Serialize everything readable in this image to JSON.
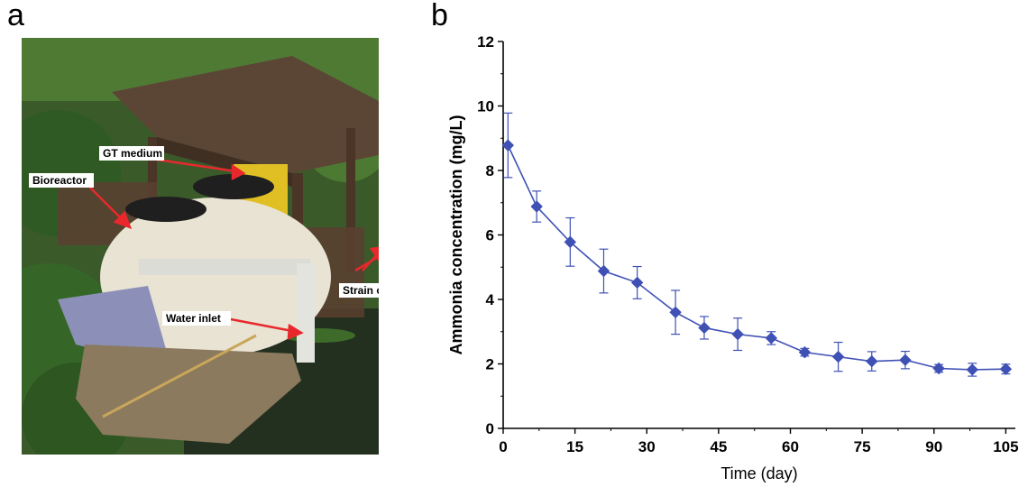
{
  "panels": {
    "a": "a",
    "b": "b"
  },
  "photo": {
    "annotations": [
      {
        "id": "gt-medium",
        "label": "GT medium"
      },
      {
        "id": "bioreactor",
        "label": "Bioreactor"
      },
      {
        "id": "strain-outfall",
        "label": "Strain outfall"
      },
      {
        "id": "water-inlet",
        "label": "Water inlet"
      }
    ],
    "colors": {
      "arrow": "#e8282c",
      "foliage": "#3f6b2c",
      "water": "#2b3a2a",
      "roof": "#5b4636",
      "tank": "#e9e3d3"
    }
  },
  "chart_data": {
    "type": "line",
    "xlabel": "Time (day)",
    "ylabel": "Ammonia concentration (mg/L)",
    "xlim": [
      0,
      107
    ],
    "ylim": [
      0,
      12
    ],
    "xticks": [
      0,
      15,
      30,
      45,
      60,
      75,
      90,
      105
    ],
    "yticks": [
      0,
      2,
      4,
      6,
      8,
      10,
      12
    ],
    "grid": false,
    "marker": "diamond",
    "color": "#3f51b5",
    "series": [
      {
        "x": [
          1,
          7,
          14,
          21,
          28,
          36,
          42,
          49,
          56,
          63,
          70,
          77,
          84,
          91,
          98,
          105
        ],
        "y": [
          8.78,
          6.88,
          5.78,
          4.88,
          4.52,
          3.6,
          3.12,
          2.92,
          2.8,
          2.36,
          2.22,
          2.08,
          2.12,
          1.86,
          1.82,
          1.84
        ],
        "err": [
          1.0,
          0.48,
          0.75,
          0.68,
          0.5,
          0.68,
          0.35,
          0.5,
          0.2,
          0.12,
          0.45,
          0.3,
          0.27,
          0.12,
          0.2,
          0.15
        ]
      }
    ]
  }
}
